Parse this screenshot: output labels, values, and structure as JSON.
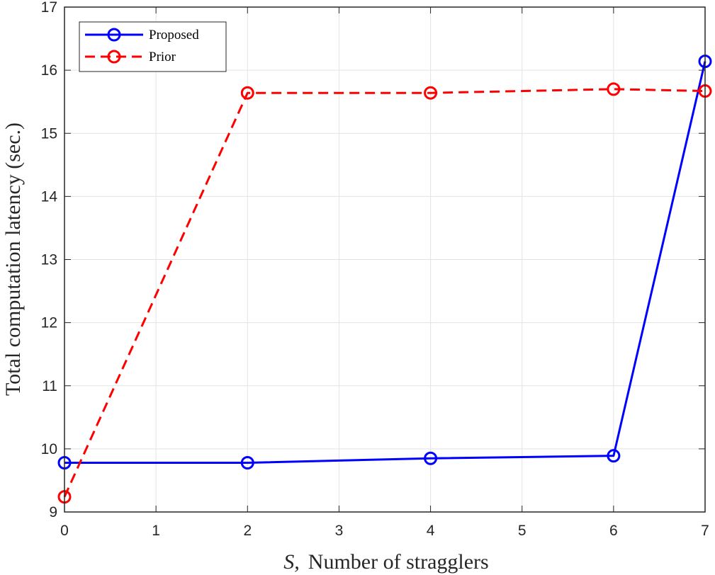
{
  "chart_data": {
    "type": "line",
    "xlabel_var": "S,",
    "xlabel_text": "Number of stragglers",
    "ylabel": "Total computation latency (sec.)",
    "xlim": [
      0,
      7
    ],
    "ylim": [
      9,
      17
    ],
    "xticks": [
      0,
      1,
      2,
      3,
      4,
      5,
      6,
      7
    ],
    "yticks": [
      9,
      10,
      11,
      12,
      13,
      14,
      15,
      16,
      17
    ],
    "grid": true,
    "legend_position": "top-left",
    "series": [
      {
        "name": "Proposed",
        "color": "#0000FF",
        "line_style": "solid",
        "marker": "circle",
        "points": [
          [
            0,
            9.78
          ],
          [
            2,
            9.78
          ],
          [
            4,
            9.85
          ],
          [
            6,
            9.89
          ],
          [
            7,
            16.14
          ]
        ]
      },
      {
        "name": "Prior",
        "color": "#FF0000",
        "line_style": "dashed",
        "marker": "circle",
        "points": [
          [
            0,
            9.24
          ],
          [
            2,
            15.64
          ],
          [
            4,
            15.64
          ],
          [
            6,
            15.7
          ],
          [
            7,
            15.67
          ]
        ]
      }
    ]
  }
}
